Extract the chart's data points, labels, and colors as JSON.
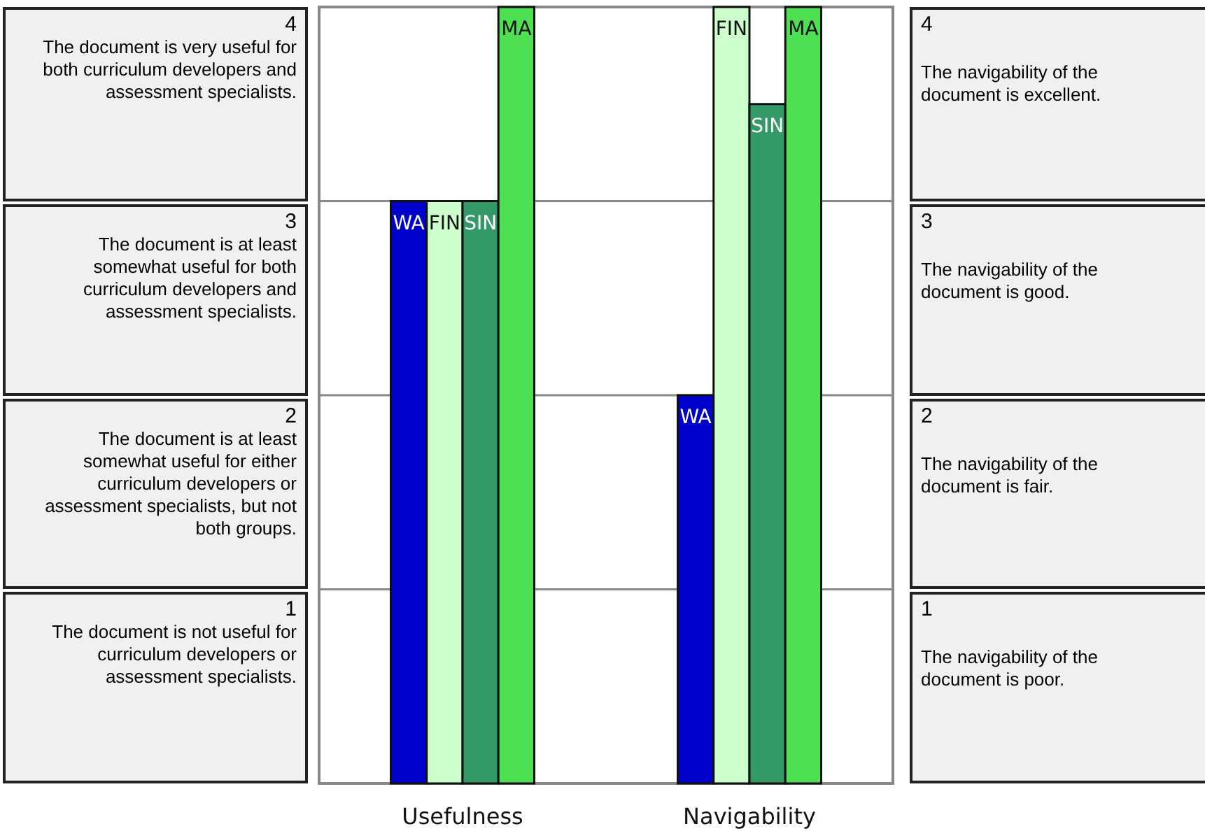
{
  "chart_data": {
    "type": "bar",
    "categories": [
      "Usefulness",
      "Navigability"
    ],
    "series": [
      {
        "name": "WA",
        "color": "#0000cc",
        "values": [
          3,
          2
        ]
      },
      {
        "name": "FIN",
        "color": "#ccffcc",
        "values": [
          3,
          4
        ]
      },
      {
        "name": "SIN",
        "color": "#339966",
        "values": [
          3,
          3.5
        ]
      },
      {
        "name": "MA",
        "color": "#4ee052",
        "values": [
          4,
          4
        ]
      }
    ],
    "ylim": [
      0,
      4
    ],
    "yticks": [
      1,
      2,
      3,
      4
    ],
    "y2lim": [
      0,
      4
    ],
    "y2ticks": [
      1,
      2,
      3,
      4
    ],
    "grid": "y",
    "legend": false,
    "annotations": [
      "The document is very useful for both curriculum developers and assessment specialists.",
      "The document is at least somewhat useful for both curriculum developers and assessment specialists.",
      "The document is at least somewhat useful for either curriculum developers or assessment specialists, but not both groups.",
      "The document is not useful for curriculum developers or assessment specialists.",
      "The navigability of the document is excellent.",
      "The navigability of the document is good.",
      "The navigability of the document is fair.",
      "The navigability of the document is poor."
    ]
  }
}
